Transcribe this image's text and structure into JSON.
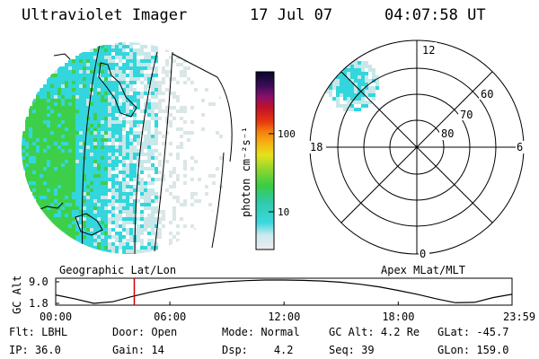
{
  "header": {
    "title": "Ultraviolet Imager",
    "date": "17 Jul 07",
    "time": "04:07:58 UT"
  },
  "panels": {
    "geo_label": "Geographic Lat/Lon",
    "apex_label": "Apex MLat/MLT"
  },
  "colorbar": {
    "label": "photon cm⁻²s⁻¹",
    "ticks": [
      "100",
      "10"
    ]
  },
  "polar": {
    "mlt_labels": [
      "12",
      "18",
      "6",
      "0"
    ],
    "lat_labels": [
      "60",
      "70",
      "80"
    ]
  },
  "altitude_plot": {
    "ylabel": "GC Alt",
    "yticks": [
      "9.0",
      "1.8"
    ],
    "xticks": [
      "00:00",
      "06:00",
      "12:00",
      "18:00",
      "23:59"
    ]
  },
  "chart_data": {
    "type": "line",
    "title": "",
    "xlabel": "",
    "ylabel": "GC Alt",
    "x_hours": [
      0,
      1.0,
      2.0,
      3.0,
      4.0,
      5.0,
      6.0,
      7.0,
      8.0,
      9.0,
      10.0,
      11.0,
      12.0,
      13.0,
      14.0,
      15.0,
      16.0,
      17.0,
      18.0,
      19.0,
      20.0,
      21.0,
      22.0,
      23.0,
      23.98
    ],
    "y_values": [
      4.4,
      3.2,
      1.8,
      2.3,
      3.9,
      5.3,
      6.4,
      7.3,
      8.0,
      8.5,
      8.8,
      9.0,
      9.0,
      8.9,
      8.7,
      8.3,
      7.7,
      6.9,
      5.8,
      4.6,
      3.2,
      2.0,
      2.1,
      3.6,
      4.6
    ],
    "ylim": [
      1.8,
      9.0
    ],
    "xlim_hours": [
      0,
      23.98
    ],
    "current_time_hours": 4.13,
    "current_marker_color": "#cc0000"
  },
  "info": {
    "row1": [
      {
        "key": "Flt:",
        "value": "LBHL"
      },
      {
        "key": "Door:",
        "value": "Open"
      },
      {
        "key": "Mode:",
        "value": "Normal"
      },
      {
        "key": "GC Alt:",
        "value": "4.2 Re"
      },
      {
        "key": "GLat:",
        "value": "-45.7"
      }
    ],
    "row2": [
      {
        "key": "IP:",
        "value": "36.0"
      },
      {
        "key": "Gain:",
        "value": "14"
      },
      {
        "key": "Dsp:",
        "value": "4.2"
      },
      {
        "key": "Seq:",
        "value": "39"
      },
      {
        "key": "GLon:",
        "value": "159.0"
      }
    ]
  },
  "colors": {
    "cyan": "#33d6dc",
    "green": "#3ecf4a",
    "pale": "#c9e7e9",
    "grey": "#dbe6e6"
  }
}
